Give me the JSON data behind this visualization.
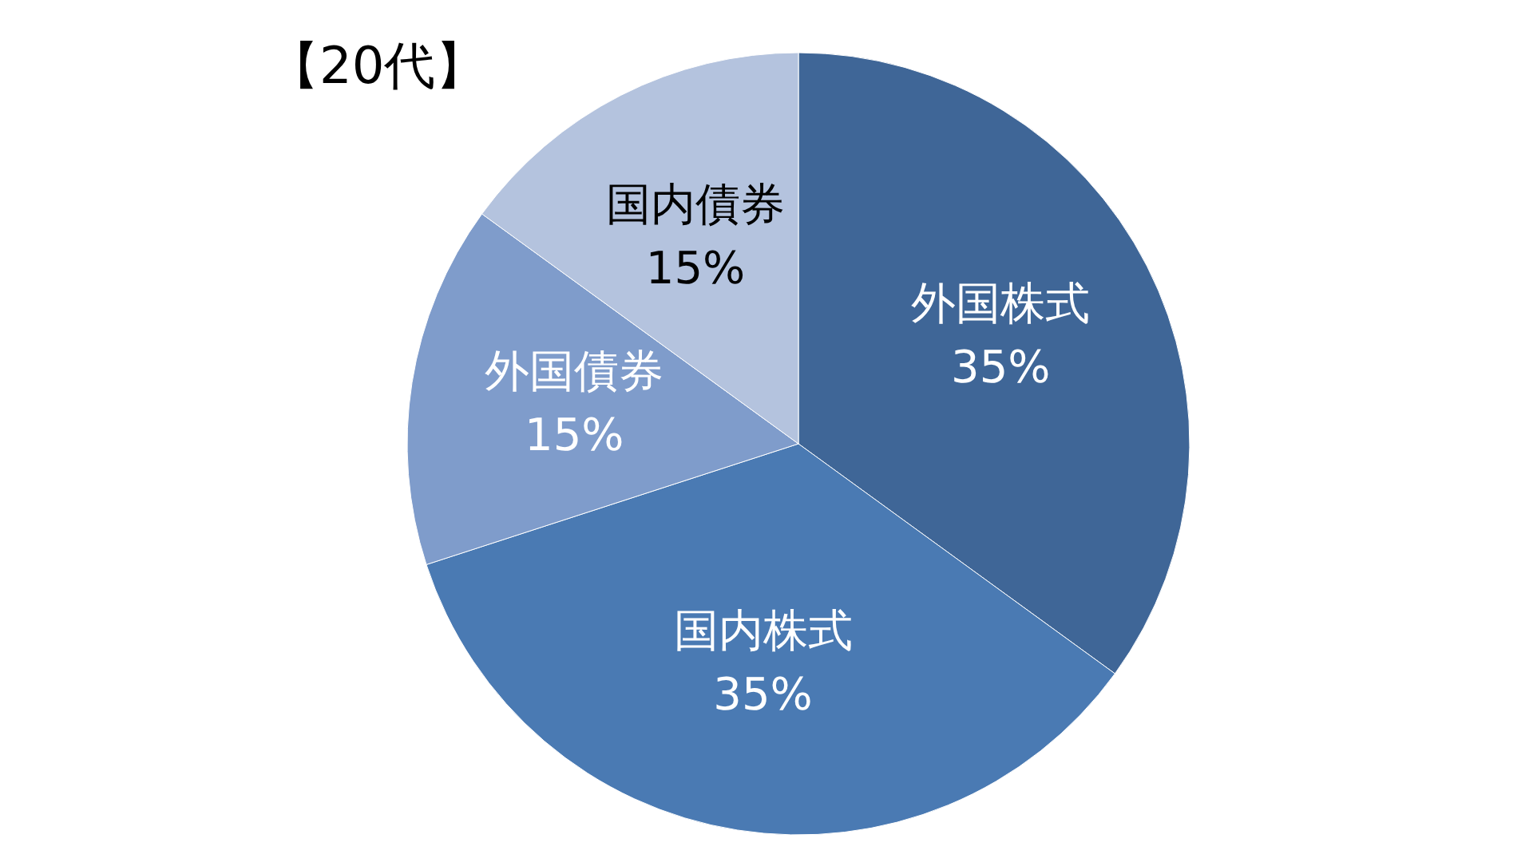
{
  "chart_data": {
    "type": "pie",
    "title": "【20代】",
    "categories": [
      "外国株式",
      "国内株式",
      "外国債券",
      "国内債券"
    ],
    "values": [
      35,
      35,
      15,
      15
    ],
    "value_labels": [
      "35%",
      "35%",
      "15%",
      "15%"
    ],
    "colors": [
      "#3f6697",
      "#4a7ab3",
      "#7f9ccb",
      "#b4c3de"
    ]
  }
}
